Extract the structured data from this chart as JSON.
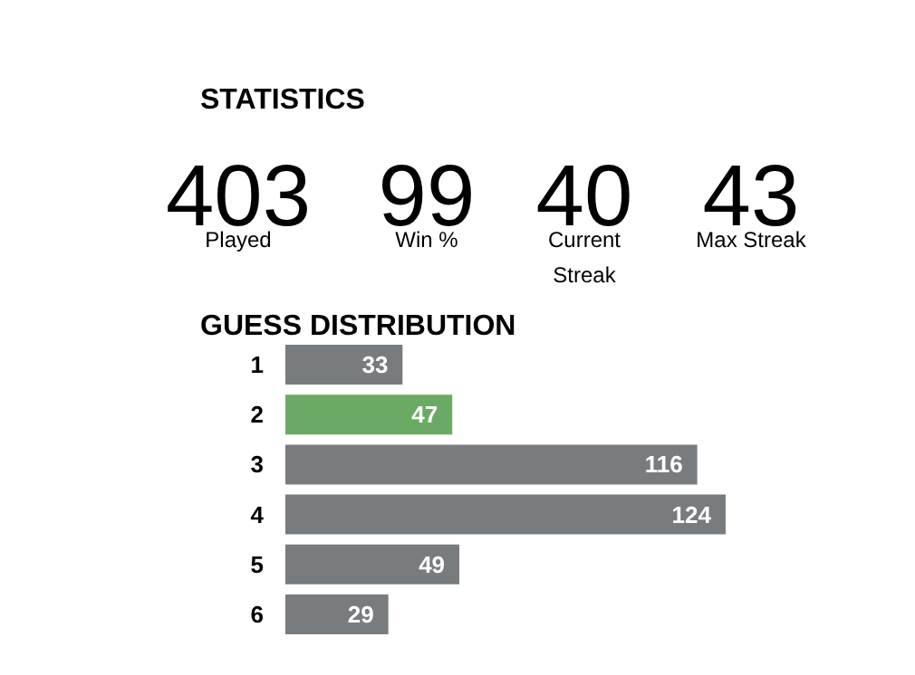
{
  "chart_data": [
    {
      "type": "other",
      "title": "STATISTICS",
      "annotations": [
        "403",
        "Played",
        "99",
        "Win %",
        "40",
        "Current\nStreak",
        "43",
        "Max Streak"
      ]
    },
    {
      "type": "bar",
      "title": "GUESS DISTRIBUTION",
      "orientation": "horizontal",
      "categories": [
        "1",
        "2",
        "3",
        "4",
        "5",
        "6"
      ],
      "values": [
        33,
        47,
        116,
        124,
        49,
        29
      ],
      "colors": [
        "#787c7e",
        "#6aaa64",
        "#787c7e",
        "#787c7e",
        "#787c7e",
        "#787c7e"
      ],
      "data_labels": true
    }
  ]
}
